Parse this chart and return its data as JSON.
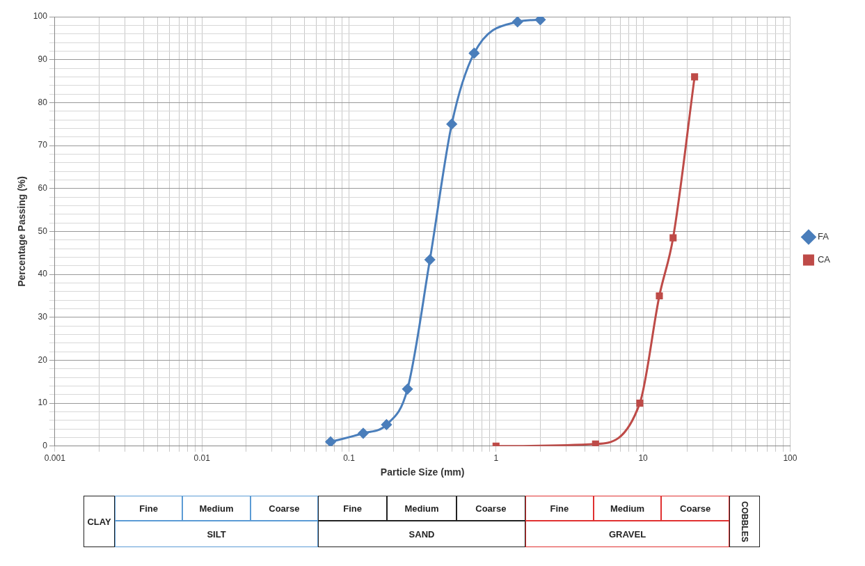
{
  "chart_data": {
    "type": "line",
    "xlabel": "Particle Size (mm)",
    "ylabel": "Percentage Passing (%)",
    "log": "x",
    "grid": true,
    "legend": "right",
    "xlim": [
      0.001,
      100
    ],
    "xticks": [
      0.001,
      {
        "value": 0.002,
        "label": null
      },
      {
        "value": 0.003,
        "label": null
      },
      {
        "value": 0.004,
        "label": null
      },
      {
        "value": 0.005,
        "label": null
      },
      {
        "value": 0.006,
        "label": null
      },
      {
        "value": 0.007,
        "label": null
      },
      {
        "value": 0.008,
        "label": null
      },
      {
        "value": 0.009,
        "label": null
      },
      0.01,
      {
        "value": 0.02,
        "label": null
      },
      {
        "value": 0.03,
        "label": null
      },
      {
        "value": 0.04,
        "label": null
      },
      {
        "value": 0.05,
        "label": null
      },
      {
        "value": 0.06,
        "label": null
      },
      {
        "value": 0.07,
        "label": null
      },
      {
        "value": 0.08,
        "label": null
      },
      {
        "value": 0.09,
        "label": null
      },
      0.1,
      {
        "value": 0.2,
        "label": null
      },
      {
        "value": 0.3,
        "label": null
      },
      {
        "value": 0.4,
        "label": null
      },
      {
        "value": 0.5,
        "label": null
      },
      {
        "value": 0.6,
        "label": null
      },
      {
        "value": 0.7,
        "label": null
      },
      {
        "value": 0.8,
        "label": null
      },
      {
        "value": 0.9,
        "label": null
      },
      1,
      {
        "value": 2,
        "label": null
      },
      {
        "value": 3,
        "label": null
      },
      {
        "value": 4,
        "label": null
      },
      {
        "value": 5,
        "label": null
      },
      {
        "value": 6,
        "label": null
      },
      {
        "value": 7,
        "label": null
      },
      {
        "value": 8,
        "label": null
      },
      {
        "value": 9,
        "label": null
      },
      10,
      {
        "value": 20,
        "label": null
      },
      {
        "value": 30,
        "label": null
      },
      {
        "value": 40,
        "label": null
      },
      {
        "value": 50,
        "label": null
      },
      {
        "value": 60,
        "label": null
      },
      {
        "value": 70,
        "label": null
      },
      {
        "value": 80,
        "label": null
      },
      {
        "value": 90,
        "label": null
      },
      100
    ],
    "ylim": [
      0,
      100
    ],
    "yticks": [
      0,
      {
        "value": 2,
        "label": null
      },
      {
        "value": 4,
        "label": null
      },
      {
        "value": 6,
        "label": null
      },
      {
        "value": 8,
        "label": null
      },
      10,
      {
        "value": 12,
        "label": null
      },
      {
        "value": 14,
        "label": null
      },
      {
        "value": 16,
        "label": null
      },
      {
        "value": 18,
        "label": null
      },
      20,
      {
        "value": 22,
        "label": null
      },
      {
        "value": 24,
        "label": null
      },
      {
        "value": 26,
        "label": null
      },
      {
        "value": 28,
        "label": null
      },
      30,
      {
        "value": 32,
        "label": null
      },
      {
        "value": 34,
        "label": null
      },
      {
        "value": 36,
        "label": null
      },
      {
        "value": 38,
        "label": null
      },
      40,
      {
        "value": 42,
        "label": null
      },
      {
        "value": 44,
        "label": null
      },
      {
        "value": 46,
        "label": null
      },
      {
        "value": 48,
        "label": null
      },
      50,
      {
        "value": 52,
        "label": null
      },
      {
        "value": 54,
        "label": null
      },
      {
        "value": 56,
        "label": null
      },
      {
        "value": 58,
        "label": null
      },
      60,
      {
        "value": 62,
        "label": null
      },
      {
        "value": 64,
        "label": null
      },
      {
        "value": 66,
        "label": null
      },
      {
        "value": 68,
        "label": null
      },
      70,
      {
        "value": 72,
        "label": null
      },
      {
        "value": 74,
        "label": null
      },
      {
        "value": 76,
        "label": null
      },
      {
        "value": 78,
        "label": null
      },
      80,
      {
        "value": 82,
        "label": null
      },
      {
        "value": 84,
        "label": null
      },
      {
        "value": 86,
        "label": null
      },
      {
        "value": 88,
        "label": null
      },
      90,
      {
        "value": 92,
        "label": null
      },
      {
        "value": 94,
        "label": null
      },
      {
        "value": 96,
        "label": null
      },
      {
        "value": 98,
        "label": null
      },
      100
    ],
    "series": [
      {
        "name": "FA",
        "color": "#4a7ebb",
        "marker": "diamond",
        "x": [
          0.075,
          0.125,
          0.18,
          0.25,
          0.355,
          0.5,
          0.71,
          1.4,
          2
        ],
        "values": [
          1,
          3,
          5,
          13.3,
          43.4,
          75,
          91.5,
          98.8,
          99.3
        ]
      },
      {
        "name": "CA",
        "color": "#be4b48",
        "marker": "square",
        "x": [
          1,
          4.75,
          9.5,
          12.9,
          16,
          22.4
        ],
        "values": [
          0,
          0.5,
          10,
          35,
          48.5,
          86
        ]
      }
    ],
    "annotations": [
      "CLAY",
      "Fine",
      "Medium",
      "Coarse",
      "SILT",
      "Fine",
      "Medium",
      "Coarse",
      "SAND",
      "Fine",
      "Medium",
      "Coarse",
      "GRAVEL",
      "COBBLES"
    ]
  }
}
